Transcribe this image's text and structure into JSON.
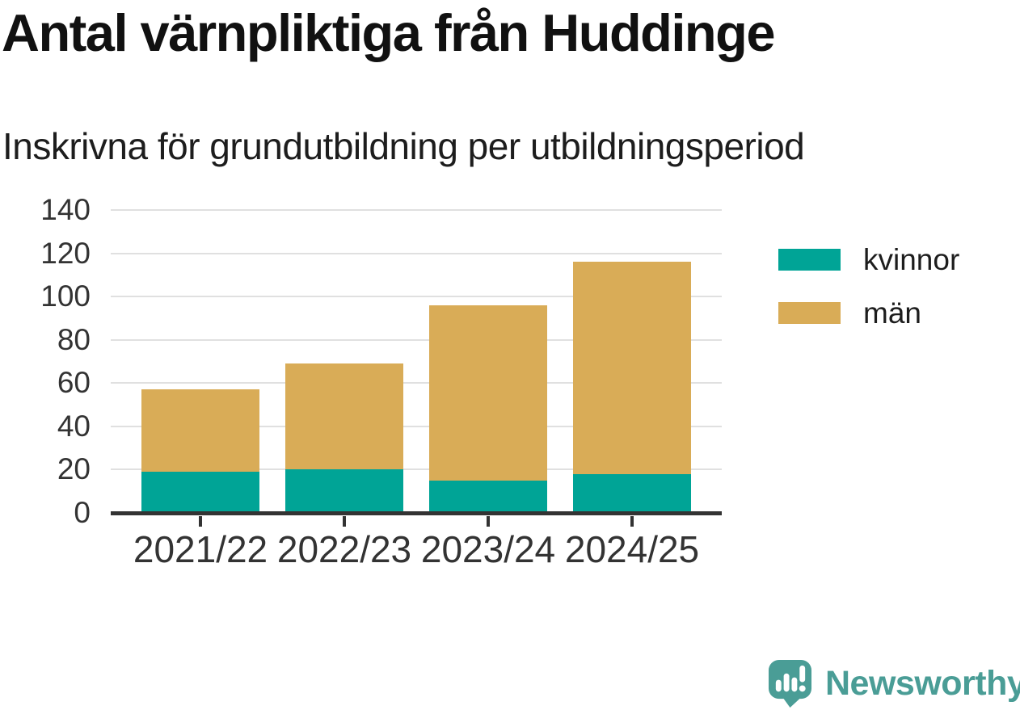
{
  "header": {
    "title": "Antal värnpliktiga från Huddinge",
    "subtitle": "Inskrivna för grundutbildning per utbildningsperiod"
  },
  "chart_data": {
    "type": "bar",
    "stacked": true,
    "title": "Antal värnpliktiga från Huddinge",
    "subtitle": "Inskrivna för grundutbildning per utbildningsperiod",
    "categories": [
      "2021/22",
      "2022/23",
      "2023/24",
      "2024/25"
    ],
    "series": [
      {
        "name": "kvinnor",
        "color": "#00A496",
        "values": [
          19,
          20,
          15,
          18
        ]
      },
      {
        "name": "män",
        "color": "#D9AC57",
        "values": [
          38,
          49,
          81,
          98
        ]
      }
    ],
    "stack_totals": [
      57,
      69,
      96,
      116
    ],
    "xlabel": "",
    "ylabel": "",
    "ylim": [
      0,
      140
    ],
    "yticks": [
      0,
      20,
      40,
      60,
      80,
      100,
      120,
      140
    ],
    "grid": true,
    "legend_position": "right"
  },
  "footer": {
    "brand": "Newsworthy"
  },
  "colors": {
    "series_kvinnor": "#00A496",
    "series_man": "#D9AC57",
    "brand_teal": "#4A9D96",
    "axis_text": "#333333",
    "axis_line": "#333333",
    "gridline": "#E0E0E0",
    "background": "#FFFFFF"
  },
  "icons": {
    "logo_mark": "newsworthy-speech-bubble-bar-chart-icon"
  }
}
